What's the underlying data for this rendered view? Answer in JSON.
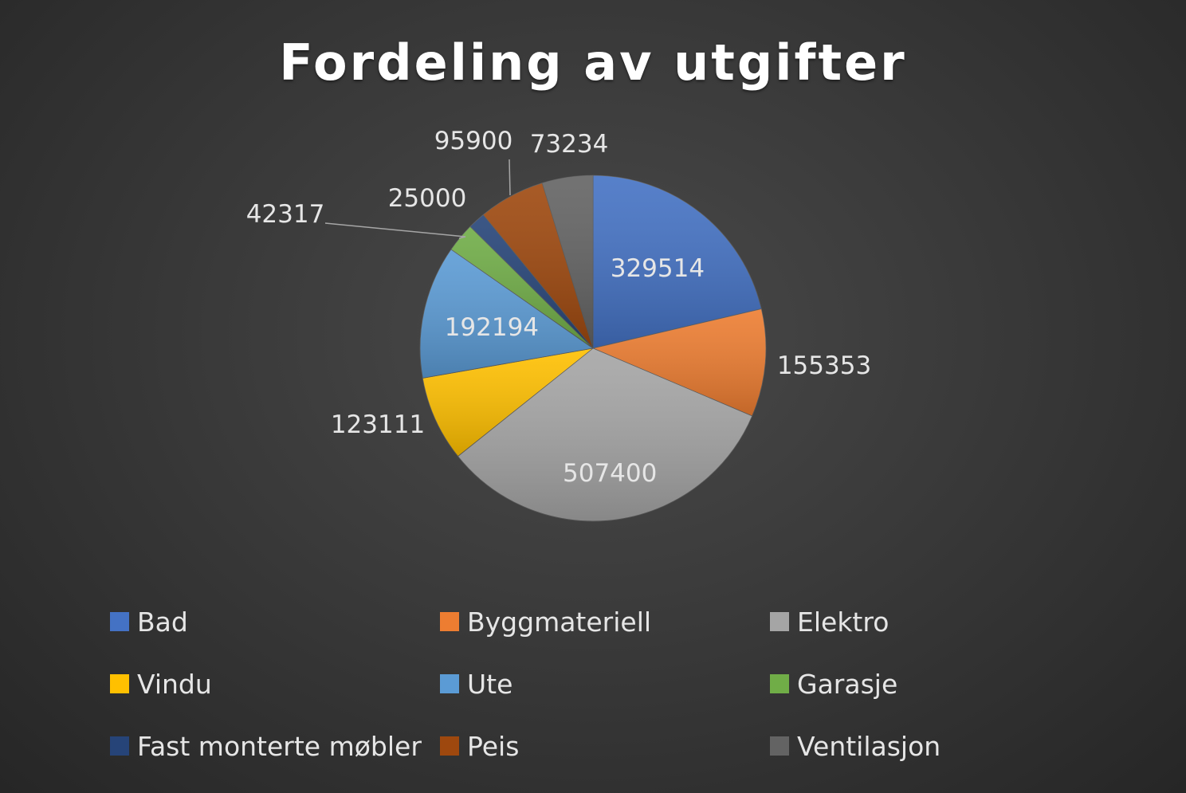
{
  "chart_data": {
    "type": "pie",
    "title": "Fordeling av utgifter",
    "legend_position": "bottom",
    "categories": [
      "Bad",
      "Byggmateriell",
      "Elektro",
      "Vindu",
      "Ute",
      "Garasje",
      "Fast monterte møbler",
      "Peis",
      "Ventilasjon"
    ],
    "values": [
      329514,
      155353,
      507400,
      123111,
      192194,
      42317,
      25000,
      95900,
      73234
    ],
    "colors": [
      "#4472C4",
      "#ED7D31",
      "#A5A5A5",
      "#FFC000",
      "#5B9BD5",
      "#70AD47",
      "#264478",
      "#9E480E",
      "#636363"
    ],
    "data_labels": [
      "329514",
      "155353",
      "507400",
      "123111",
      "192194",
      "42317",
      "25000",
      "95900",
      "73234"
    ]
  }
}
